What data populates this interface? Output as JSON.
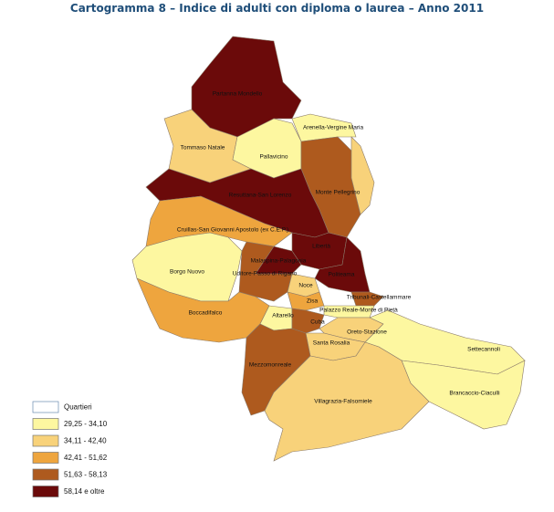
{
  "title": "Cartogramma 8 – Indice di adulti con diploma o laurea – Anno 2011",
  "legend": [
    {
      "label": "Quartieri",
      "color": "#ffffff"
    },
    {
      "label": "29,25 - 34,10",
      "color": "#fdf7a0"
    },
    {
      "label": "34,11 - 42,40",
      "color": "#f8d27a"
    },
    {
      "label": "42,41 - 51,62",
      "color": "#eea53e"
    },
    {
      "label": "51,63 - 58,13",
      "color": "#ae5a1e"
    },
    {
      "label": "58,14 e oltre",
      "color": "#6b0a0a"
    }
  ],
  "districts": [
    "Partanna Mondello",
    "Arenella-Vergine Maria",
    "Tommaso Natale",
    "Pallavicino",
    "Monte Pellegrino",
    "Resuttana-San Lorenzo",
    "Cruillas-San Giovanni Apostolo (ex C.E.P.)",
    "Libertà",
    "Malaspina-Palagonia",
    "Borgo Nuovo",
    "Politeama",
    "Uditore-Passo di Rigano",
    "Noce",
    "Tribunali-Castellammare",
    "Zisa",
    "Boccadifalco",
    "Palazzo Reale-Monte di Pietà",
    "Altarello",
    "Cuba",
    "Oreto-Stazione",
    "Settecannoli",
    "Santa Rosalia",
    "Mezzomonreale",
    "Brancaccio-Ciaculli",
    "Villagrazia-Falsomiele"
  ]
}
